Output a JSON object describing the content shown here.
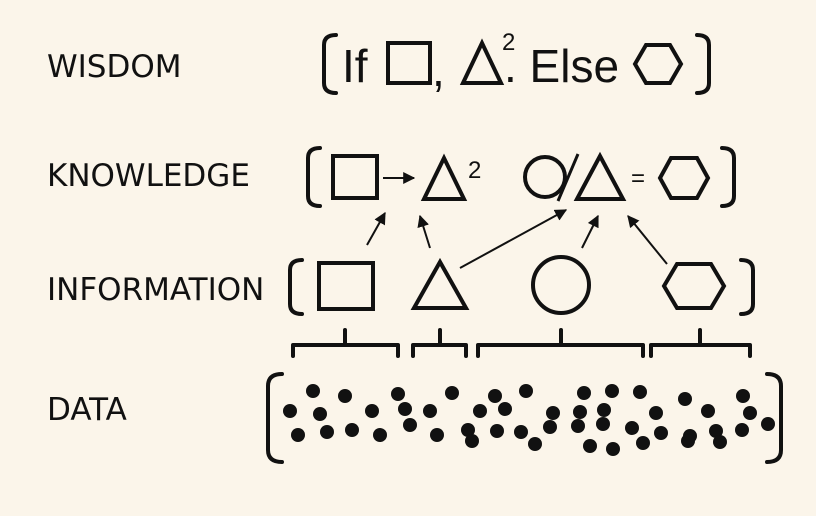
{
  "levels": {
    "wisdom": "WISDOM",
    "knowledge": "KNOWLEDGE",
    "information": "INFORMATION",
    "data": "DATA"
  },
  "wisdom_row": {
    "if_text": "If",
    "comma": ",",
    "exponent": "2",
    "else_text": ". Else"
  },
  "knowledge_row": {
    "exponent": "2",
    "equals": "="
  },
  "colors": {
    "background": "#fbf5ea",
    "ink": "#111111"
  }
}
